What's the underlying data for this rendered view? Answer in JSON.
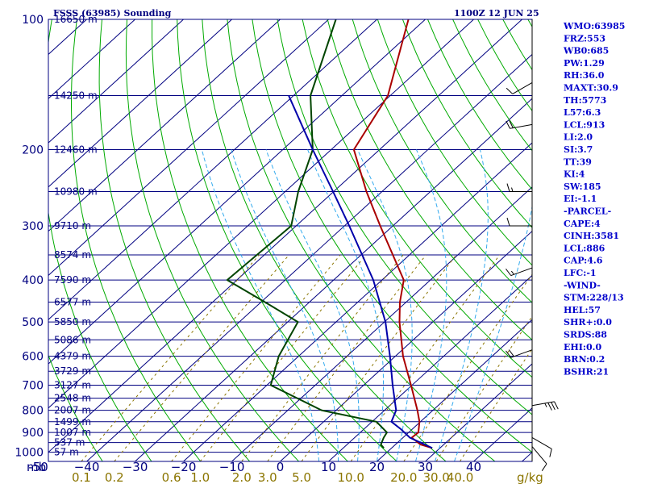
{
  "header": {
    "station": "FSSS (63985) Sounding",
    "time": "1100Z 12 JUN 25"
  },
  "indices": [
    "WMO:63985",
    "FRZ:553",
    "WB0:685",
    "PW:1.29",
    "RH:36.0",
    "MAXT:30.9",
    "TH:5773",
    "L57:6.3",
    "LCL:913",
    "LI:2.0",
    "SI:3.7",
    "TT:39",
    "KI:4",
    "SW:185",
    "EI:-1.1",
    "-PARCEL-",
    "CAPE:4",
    "CINH:3581",
    "LCL:886",
    "CAP:4.6",
    "LFC:-1",
    "-WIND-",
    "STM:228/13",
    "HEL:57",
    "SHR+:0.0",
    "SRDS:88",
    "EHI:0.0",
    "BRN:0.2",
    "BSHR:21"
  ],
  "colors": {
    "frame": "#000080",
    "isobar": "#000080",
    "isotherm": "#000080",
    "dry_adiabat": "#00aa00",
    "moist_adiabat": "#33aaee",
    "mixing_ratio": "#8b7500",
    "temperature": "#aa0000",
    "dewpoint": "#004400",
    "parcel": "#0000aa",
    "wind_barb": "#000000"
  },
  "chart_data": {
    "type": "line",
    "title": "FSSS (63985) Sounding",
    "subtitle": "1100Z 12 JUN 25",
    "pressure_unit": "mb",
    "temperature_axis": {
      "ticks": [
        -50,
        -40,
        -30,
        -20,
        -10,
        0,
        10,
        20,
        30,
        40
      ],
      "labels": [
        "-50",
        "−40",
        "−30",
        "−20",
        "−10",
        "0",
        "10",
        "20",
        "30",
        "40"
      ],
      "xlim": [
        -50,
        50
      ]
    },
    "pressure_axis": {
      "ticks": [
        100,
        200,
        300,
        400,
        500,
        600,
        700,
        800,
        900,
        1000
      ],
      "ylim": [
        1050,
        100
      ],
      "scale": "log"
    },
    "height_labels": [
      {
        "p": 100,
        "label": "16650 m"
      },
      {
        "p": 150,
        "label": "14250 m"
      },
      {
        "p": 200,
        "label": "12460 m"
      },
      {
        "p": 250,
        "label": "10980 m"
      },
      {
        "p": 300,
        "label": "9710 m"
      },
      {
        "p": 350,
        "label": "8574 m"
      },
      {
        "p": 400,
        "label": "7590 m"
      },
      {
        "p": 450,
        "label": "6577 m"
      },
      {
        "p": 500,
        "label": "5850 m"
      },
      {
        "p": 550,
        "label": "5086 m"
      },
      {
        "p": 600,
        "label": "4379 m"
      },
      {
        "p": 650,
        "label": "3729 m"
      },
      {
        "p": 700,
        "label": "3127 m"
      },
      {
        "p": 750,
        "label": "2548 m"
      },
      {
        "p": 800,
        "label": "2007 m"
      },
      {
        "p": 850,
        "label": "1499 m"
      },
      {
        "p": 900,
        "label": "1007 m"
      },
      {
        "p": 950,
        "label": "537 m"
      },
      {
        "p": 1000,
        "label": "57 m"
      }
    ],
    "mixing_ratio_labels": [
      "0.1",
      "0.2",
      "0.6",
      "1.0",
      "2.0",
      "3.0",
      "5.0",
      "10.0",
      "20.0",
      "30.0",
      "40.0"
    ],
    "mixing_ratio_unit": "g/kg",
    "mixing_ratio_values": [
      0.1,
      0.2,
      0.6,
      1.0,
      2.0,
      3.0,
      5.0,
      10.0,
      20.0,
      30.0,
      40.0
    ],
    "series": [
      {
        "key": "temperature",
        "points": [
          {
            "p": 978,
            "t": 28.4
          },
          {
            "p": 960,
            "t": 25.2
          },
          {
            "p": 925,
            "t": 21.8
          },
          {
            "p": 900,
            "t": 22.0
          },
          {
            "p": 850,
            "t": 19.8
          },
          {
            "p": 800,
            "t": 16.8
          },
          {
            "p": 700,
            "t": 9.8
          },
          {
            "p": 600,
            "t": 1.6
          },
          {
            "p": 500,
            "t": -6.9
          },
          {
            "p": 450,
            "t": -11.3
          },
          {
            "p": 400,
            "t": -15.5
          },
          {
            "p": 300,
            "t": -32.6
          },
          {
            "p": 250,
            "t": -43.2
          },
          {
            "p": 200,
            "t": -55.3
          },
          {
            "p": 150,
            "t": -60.5
          },
          {
            "p": 100,
            "t": -73.5
          }
        ]
      },
      {
        "key": "dewpoint",
        "points": [
          {
            "p": 978,
            "t": 18.4
          },
          {
            "p": 960,
            "t": 17.0
          },
          {
            "p": 925,
            "t": 16.0
          },
          {
            "p": 900,
            "t": 15.5
          },
          {
            "p": 850,
            "t": 10.9
          },
          {
            "p": 800,
            "t": -3.0
          },
          {
            "p": 700,
            "t": -19.2
          },
          {
            "p": 600,
            "t": -24.1
          },
          {
            "p": 500,
            "t": -27.9
          },
          {
            "p": 450,
            "t": -39.2
          },
          {
            "p": 400,
            "t": -52.0
          },
          {
            "p": 300,
            "t": -51.0
          },
          {
            "p": 250,
            "t": -57.3
          },
          {
            "p": 200,
            "t": -63.8
          },
          {
            "p": 150,
            "t": -76.5
          },
          {
            "p": 100,
            "t": -88.5
          }
        ]
      },
      {
        "key": "parcel",
        "points": [
          {
            "p": 978,
            "t": 28.4
          },
          {
            "p": 925,
            "t": 21.4
          },
          {
            "p": 886,
            "t": 17.8
          },
          {
            "p": 850,
            "t": 14.0
          },
          {
            "p": 800,
            "t": 12.4
          },
          {
            "p": 700,
            "t": 6.0
          },
          {
            "p": 600,
            "t": -1.1
          },
          {
            "p": 500,
            "t": -9.8
          },
          {
            "p": 400,
            "t": -21.8
          },
          {
            "p": 300,
            "t": -39.0
          },
          {
            "p": 250,
            "t": -50.1
          },
          {
            "p": 200,
            "t": -63.8
          },
          {
            "p": 150,
            "t": -81.0
          }
        ]
      }
    ],
    "wind_barbs": [
      {
        "p": 140,
        "dir": 240,
        "kt": 10
      },
      {
        "p": 175,
        "dir": 260,
        "kt": 20
      },
      {
        "p": 250,
        "dir": 270,
        "kt": 15
      },
      {
        "p": 300,
        "dir": 270,
        "kt": 10
      },
      {
        "p": 375,
        "dir": 250,
        "kt": 15
      },
      {
        "p": 580,
        "dir": 250,
        "kt": 20
      },
      {
        "p": 780,
        "dir": 80,
        "kt": 35
      },
      {
        "p": 925,
        "dir": 120,
        "kt": 10
      },
      {
        "p": 970,
        "dir": 140,
        "kt": 10
      }
    ]
  }
}
